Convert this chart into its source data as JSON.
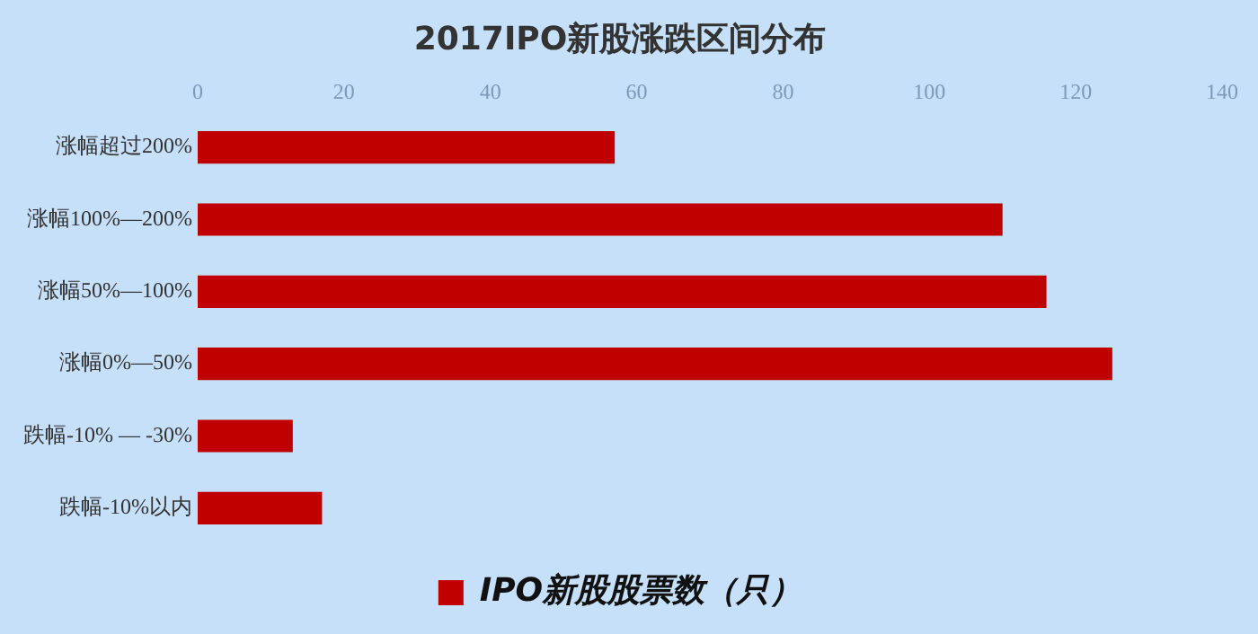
{
  "chart_data": {
    "type": "bar",
    "orientation": "horizontal",
    "title": "2017IPO新股涨跌区间分布",
    "categories": [
      "涨幅超过200%",
      "涨幅100%—200%",
      "涨幅50%—100%",
      "涨幅0%—50%",
      "跌幅-10% — -30%",
      "跌幅-10%以内"
    ],
    "series": [
      {
        "name": "IPO新股股票数（只）",
        "color": "#c00000",
        "values": [
          57,
          110,
          116,
          125,
          13,
          17
        ]
      }
    ],
    "xlim": [
      0,
      140
    ],
    "xticks": [
      0,
      20,
      40,
      60,
      80,
      100,
      120,
      140
    ],
    "grid": false,
    "legend": "bottom"
  }
}
